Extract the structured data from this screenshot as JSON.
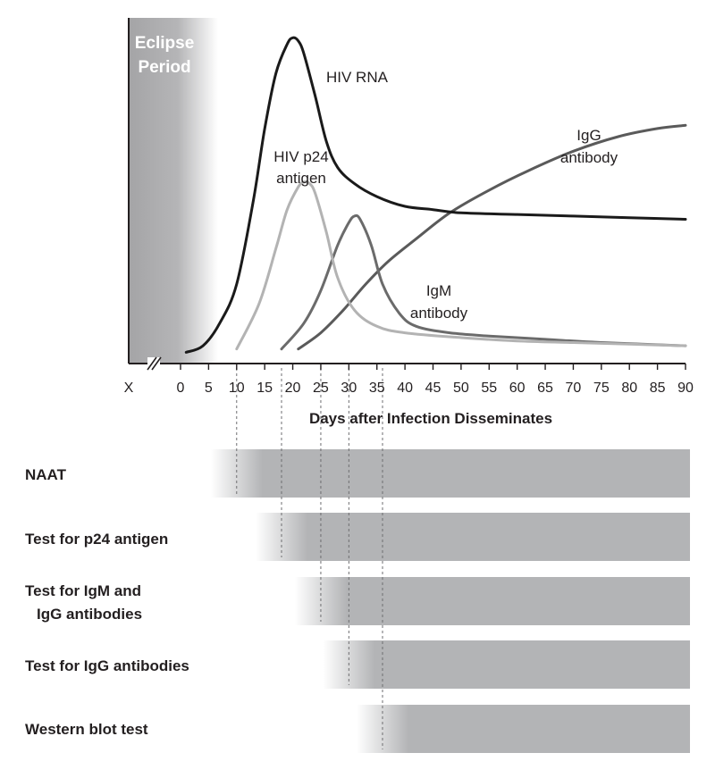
{
  "chart_data": {
    "type": "line",
    "title": "",
    "xlabel": "Days after Infection Disseminates",
    "ylabel": "",
    "x_ticks": [
      "X",
      "0",
      "5",
      "10",
      "15",
      "20",
      "25",
      "30",
      "35",
      "40",
      "45",
      "50",
      "55",
      "60",
      "65",
      "70",
      "75",
      "80",
      "85",
      "90"
    ],
    "xlim": [
      0,
      90
    ],
    "ylim": [
      0,
      100
    ],
    "eclipse_period": {
      "label_line1": "Eclipse",
      "label_line2": "Period",
      "start": "X",
      "end_day": 3
    },
    "series": [
      {
        "name": "HIV RNA",
        "label_lines": [
          "HIV RNA"
        ],
        "color": "#1a1a1a",
        "x": [
          1,
          4,
          7,
          10,
          13,
          15,
          17,
          19,
          20,
          21,
          22,
          24,
          26,
          28,
          31,
          35,
          40,
          45,
          50,
          60,
          70,
          80,
          90
        ],
        "y": [
          1,
          3,
          10,
          22,
          48,
          70,
          87,
          96,
          98,
          97,
          93,
          80,
          66,
          58,
          53,
          49,
          46,
          45,
          44,
          43.5,
          43,
          42.5,
          42
        ]
      },
      {
        "name": "HIV p24 antigen",
        "label_lines": [
          "HIV p24",
          "antigen"
        ],
        "color": "#b3b3b3",
        "x": [
          10,
          14,
          17,
          19,
          21,
          22,
          23,
          24,
          26,
          28,
          31,
          35,
          40,
          50,
          60,
          70,
          80,
          90
        ],
        "y": [
          2,
          16,
          33,
          45,
          52,
          53.5,
          53,
          50,
          38,
          24,
          14,
          9,
          7,
          5.5,
          4.5,
          4,
          3.5,
          3
        ]
      },
      {
        "name": "IgM antibody",
        "label_lines": [
          "IgM",
          "antibody"
        ],
        "color": "#6b6b6b",
        "x": [
          18,
          22,
          25,
          28,
          30,
          31,
          32,
          34,
          36,
          39,
          42,
          48,
          55,
          65,
          75,
          90
        ],
        "y": [
          2,
          10,
          20,
          34,
          41,
          43,
          42,
          34,
          22,
          13,
          9,
          7,
          6,
          5,
          4,
          3
        ]
      },
      {
        "name": "IgG antibody",
        "label_lines": [
          "IgG",
          "antibody"
        ],
        "color": "#5a5a5a",
        "x": [
          21,
          25,
          29,
          33,
          37,
          42,
          48,
          55,
          62,
          70,
          78,
          85,
          90
        ],
        "y": [
          2,
          7,
          14,
          22,
          29,
          36,
          44,
          51,
          57,
          63,
          67.5,
          70,
          71
        ]
      }
    ],
    "tests": [
      {
        "name": "NAAT",
        "label_lines": [
          "NAAT"
        ],
        "start_day": 10
      },
      {
        "name": "Test for p24 antigen",
        "label_lines": [
          "Test for p24 antigen"
        ],
        "start_day": 18
      },
      {
        "name": "Test for IgM and IgG antibodies",
        "label_lines": [
          "Test for IgM and",
          "IgG antibodies"
        ],
        "start_day": 25
      },
      {
        "name": "Test for IgG antibodies",
        "label_lines": [
          "Test for IgG antibodies"
        ],
        "start_day": 30
      },
      {
        "name": "Western blot test",
        "label_lines": [
          "Western blot test"
        ],
        "start_day": 36
      }
    ]
  }
}
